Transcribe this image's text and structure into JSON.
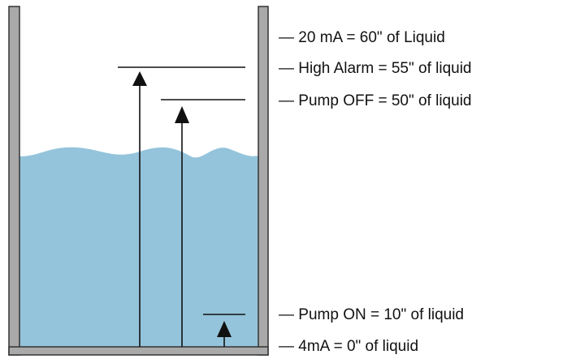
{
  "colors": {
    "tank_wall": "#a9a9a9",
    "tank_outline": "#333333",
    "liquid": "#94c4db",
    "lines": "#111111",
    "background": "#ffffff"
  },
  "levels": [
    {
      "id": "level-20ma",
      "text": "— 20 mA = 60\" of Liquid"
    },
    {
      "id": "level-high-alarm",
      "text": "— High Alarm = 55\" of liquid"
    },
    {
      "id": "level-pump-off",
      "text": "— Pump OFF = 50\" of liquid"
    },
    {
      "id": "level-pump-on",
      "text": "— Pump ON = 10\" of liquid"
    },
    {
      "id": "level-4ma",
      "text": "— 4mA = 0\" of liquid"
    }
  ]
}
